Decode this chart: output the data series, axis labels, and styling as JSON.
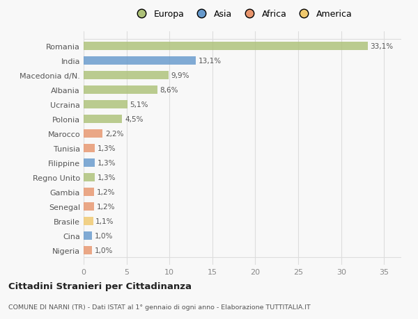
{
  "categories": [
    "Romania",
    "India",
    "Macedonia d/N.",
    "Albania",
    "Ucraina",
    "Polonia",
    "Marocco",
    "Tunisia",
    "Filippine",
    "Regno Unito",
    "Gambia",
    "Senegal",
    "Brasile",
    "Cina",
    "Nigeria"
  ],
  "values": [
    33.1,
    13.1,
    9.9,
    8.6,
    5.1,
    4.5,
    2.2,
    1.3,
    1.3,
    1.3,
    1.2,
    1.2,
    1.1,
    1.0,
    1.0
  ],
  "colors": [
    "#adc178",
    "#6699cc",
    "#adc178",
    "#adc178",
    "#adc178",
    "#adc178",
    "#e8956d",
    "#e8956d",
    "#6699cc",
    "#adc178",
    "#e8956d",
    "#e8956d",
    "#f0c96e",
    "#6699cc",
    "#e8956d"
  ],
  "legend_labels": [
    "Europa",
    "Asia",
    "Africa",
    "America"
  ],
  "legend_colors": [
    "#adc178",
    "#6699cc",
    "#e8956d",
    "#f0c96e"
  ],
  "title": "Cittadini Stranieri per Cittadinanza",
  "subtitle": "COMUNE DI NARNI (TR) - Dati ISTAT al 1° gennaio di ogni anno - Elaborazione TUTTITALIA.IT",
  "xlim": [
    0,
    37
  ],
  "xticks": [
    0,
    5,
    10,
    15,
    20,
    25,
    30,
    35
  ],
  "bg_color": "#f8f8f8",
  "bar_alpha": 0.82,
  "grid_color": "#dddddd",
  "bar_height": 0.55
}
